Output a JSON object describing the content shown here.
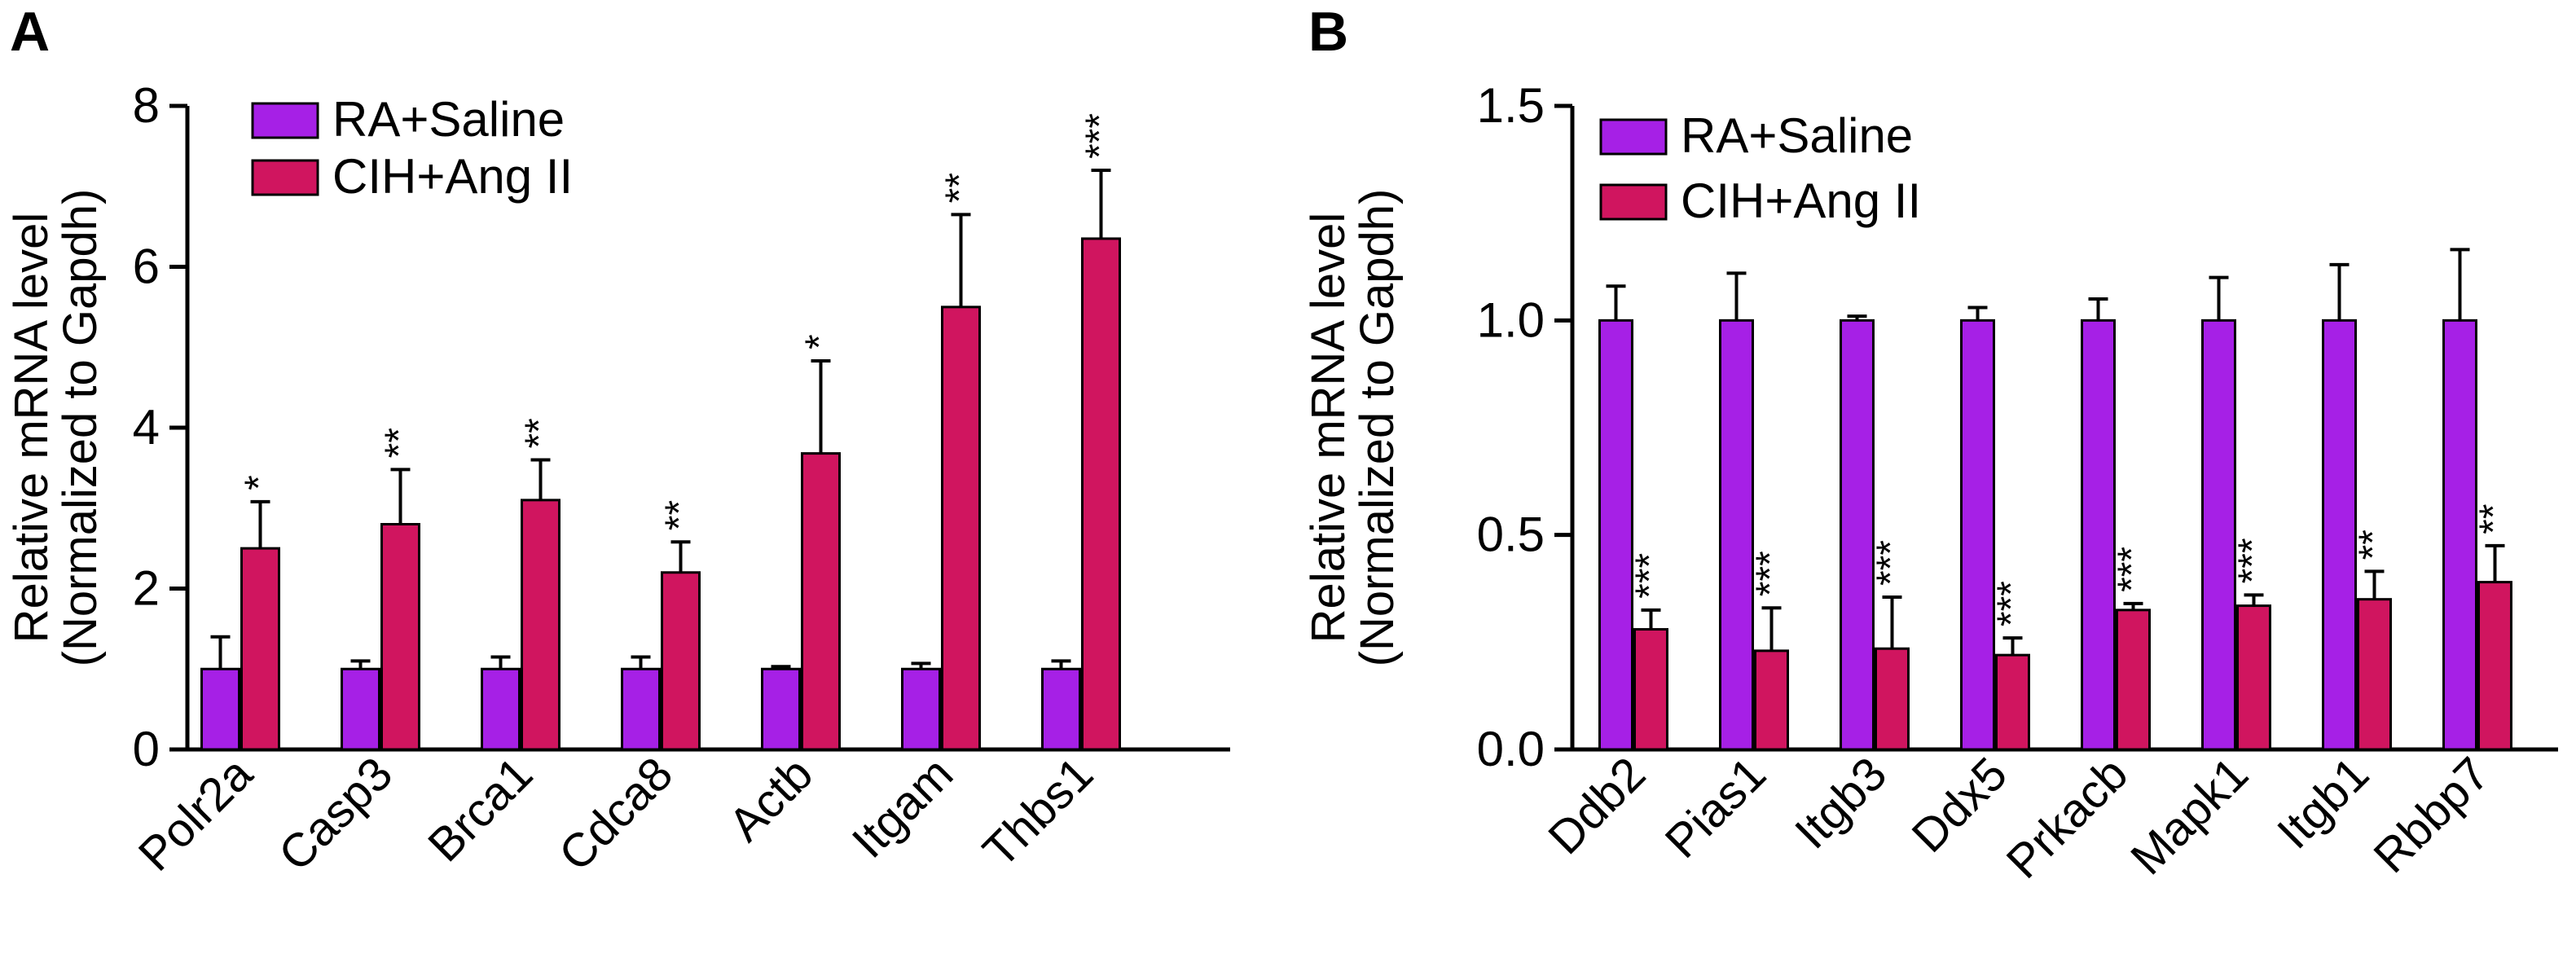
{
  "chart_data": [
    {
      "panel": "A",
      "type": "bar",
      "title": "",
      "xlabel": "",
      "ylabel": "Relative mRNA level",
      "ylabel_sub": "(Normalized to Gapdh)",
      "ylim": [
        0,
        8
      ],
      "yticks": [
        "0",
        "2",
        "4",
        "6",
        "8"
      ],
      "categories": [
        "Polr2a",
        "Casp3",
        "Brca1",
        "Cdca8",
        "Actb",
        "Itgam",
        "Thbs1"
      ],
      "series": [
        {
          "name": "RA+Saline",
          "color": "#a620e6",
          "values": [
            1.0,
            1.0,
            1.0,
            1.0,
            1.0,
            1.0,
            1.0
          ],
          "errors": [
            0.4,
            0.1,
            0.15,
            0.15,
            0.03,
            0.07,
            0.1
          ]
        },
        {
          "name": "CIH+Ang II",
          "color": "#d0155f",
          "values": [
            2.5,
            2.8,
            3.1,
            2.2,
            3.68,
            5.5,
            6.35
          ],
          "errors": [
            0.58,
            0.68,
            0.5,
            0.38,
            1.15,
            1.15,
            0.85
          ]
        }
      ],
      "significance": [
        "*",
        "**",
        "**",
        "**",
        "*",
        "**",
        "***"
      ],
      "legend": "top-left"
    },
    {
      "panel": "B",
      "type": "bar",
      "title": "",
      "xlabel": "",
      "ylabel": "Relative mRNA level",
      "ylabel_sub": "(Normalized to Gapdh)",
      "ylim": [
        0,
        1.5
      ],
      "yticks": [
        "0.0",
        "0.5",
        "1.0",
        "1.5"
      ],
      "categories": [
        "Ddb2",
        "Pias1",
        "Itgb3",
        "Ddx5",
        "Prkacb",
        "Mapk1",
        "Itgb1",
        "Rbbp7"
      ],
      "series": [
        {
          "name": "RA+Saline",
          "color": "#a620e6",
          "values": [
            1.0,
            1.0,
            1.0,
            1.0,
            1.0,
            1.0,
            1.0,
            1.0
          ],
          "errors": [
            0.08,
            0.11,
            0.01,
            0.03,
            0.05,
            0.1,
            0.13,
            0.165
          ]
        },
        {
          "name": "CIH+Ang II",
          "color": "#d0155f",
          "values": [
            0.28,
            0.23,
            0.235,
            0.22,
            0.325,
            0.335,
            0.35,
            0.39
          ],
          "errors": [
            0.045,
            0.1,
            0.12,
            0.04,
            0.015,
            0.025,
            0.065,
            0.085
          ]
        }
      ],
      "significance": [
        "***",
        "***",
        "***",
        "***",
        "***",
        "***",
        "**",
        "**"
      ],
      "legend": "top-left"
    }
  ]
}
